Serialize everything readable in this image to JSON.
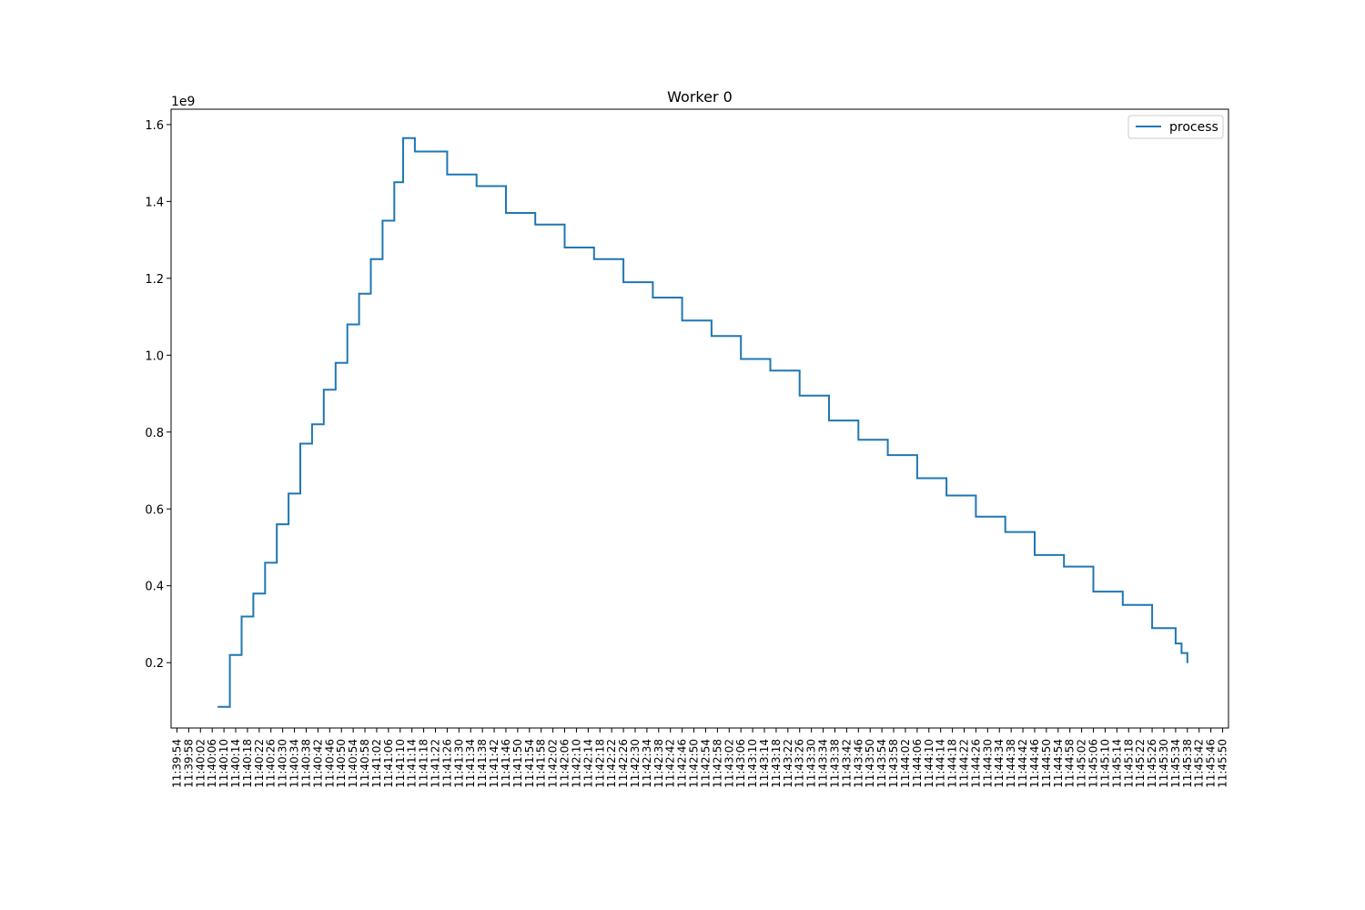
{
  "chart_data": {
    "type": "line",
    "title": "Worker 0",
    "xlabel": "",
    "ylabel": "",
    "y_offset_label": "1e9",
    "legend": {
      "entries": [
        "process"
      ],
      "placement": "top-right"
    },
    "grid": false,
    "x_ticks": [
      "11:39:54",
      "11:39:58",
      "11:40:02",
      "11:40:06",
      "11:40:10",
      "11:40:14",
      "11:40:18",
      "11:40:22",
      "11:40:26",
      "11:40:30",
      "11:40:34",
      "11:40:38",
      "11:40:42",
      "11:40:46",
      "11:40:50",
      "11:40:54",
      "11:40:58",
      "11:41:02",
      "11:41:06",
      "11:41:10",
      "11:41:14",
      "11:41:18",
      "11:41:22",
      "11:41:26",
      "11:41:30",
      "11:41:34",
      "11:41:38",
      "11:41:42",
      "11:41:46",
      "11:41:50",
      "11:41:54",
      "11:41:58",
      "11:42:02",
      "11:42:06",
      "11:42:10",
      "11:42:14",
      "11:42:18",
      "11:42:22",
      "11:42:26",
      "11:42:30",
      "11:42:34",
      "11:42:38",
      "11:42:42",
      "11:42:46",
      "11:42:50",
      "11:42:54",
      "11:42:58",
      "11:43:02",
      "11:43:06",
      "11:43:10",
      "11:43:14",
      "11:43:18",
      "11:43:22",
      "11:43:26",
      "11:43:30",
      "11:43:34",
      "11:43:38",
      "11:43:42",
      "11:43:46",
      "11:43:50",
      "11:43:54",
      "11:43:58",
      "11:44:02",
      "11:44:06",
      "11:44:10",
      "11:44:14",
      "11:44:18",
      "11:44:22",
      "11:44:26",
      "11:44:30",
      "11:44:34",
      "11:44:38",
      "11:44:42",
      "11:44:46",
      "11:44:50",
      "11:44:54",
      "11:44:58",
      "11:45:02",
      "11:45:06",
      "11:45:10",
      "11:45:14",
      "11:45:18",
      "11:45:22",
      "11:45:26",
      "11:45:30",
      "11:45:34",
      "11:45:38",
      "11:45:42",
      "11:45:46",
      "11:45:50"
    ],
    "xlim": [
      "11:39:52",
      "11:45:52"
    ],
    "y_ticks": [
      "0.2",
      "0.4",
      "0.6",
      "0.8",
      "1.0",
      "1.2",
      "1.4",
      "1.6"
    ],
    "ylim": [
      0.03,
      1.64
    ],
    "series": [
      {
        "name": "process",
        "color": "#1f77b4",
        "points": [
          [
            "11:40:08",
            0.085
          ],
          [
            "11:40:12",
            0.085
          ],
          [
            "11:40:12",
            0.22
          ],
          [
            "11:40:16",
            0.32
          ],
          [
            "11:40:20",
            0.38
          ],
          [
            "11:40:24",
            0.46
          ],
          [
            "11:40:28",
            0.56
          ],
          [
            "11:40:32",
            0.64
          ],
          [
            "11:40:36",
            0.77
          ],
          [
            "11:40:40",
            0.82
          ],
          [
            "11:40:44",
            0.91
          ],
          [
            "11:40:48",
            0.98
          ],
          [
            "11:40:52",
            1.08
          ],
          [
            "11:40:56",
            1.16
          ],
          [
            "11:41:00",
            1.25
          ],
          [
            "11:41:04",
            1.35
          ],
          [
            "11:41:08",
            1.45
          ],
          [
            "11:41:11",
            1.565
          ],
          [
            "11:41:15",
            1.53
          ],
          [
            "11:41:18",
            1.53
          ],
          [
            "11:41:26",
            1.47
          ],
          [
            "11:41:36",
            1.44
          ],
          [
            "11:41:46",
            1.37
          ],
          [
            "11:41:56",
            1.34
          ],
          [
            "11:42:06",
            1.28
          ],
          [
            "11:42:16",
            1.25
          ],
          [
            "11:42:26",
            1.19
          ],
          [
            "11:42:36",
            1.15
          ],
          [
            "11:42:46",
            1.09
          ],
          [
            "11:42:56",
            1.05
          ],
          [
            "11:43:06",
            0.99
          ],
          [
            "11:43:16",
            0.96
          ],
          [
            "11:43:26",
            0.895
          ],
          [
            "11:43:36",
            0.83
          ],
          [
            "11:43:46",
            0.78
          ],
          [
            "11:43:56",
            0.74
          ],
          [
            "11:44:06",
            0.68
          ],
          [
            "11:44:16",
            0.635
          ],
          [
            "11:44:26",
            0.58
          ],
          [
            "11:44:36",
            0.54
          ],
          [
            "11:44:46",
            0.48
          ],
          [
            "11:44:56",
            0.45
          ],
          [
            "11:45:06",
            0.385
          ],
          [
            "11:45:16",
            0.35
          ],
          [
            "11:45:26",
            0.29
          ],
          [
            "11:45:34",
            0.25
          ],
          [
            "11:45:36",
            0.225
          ],
          [
            "11:45:38",
            0.2
          ]
        ]
      }
    ]
  }
}
